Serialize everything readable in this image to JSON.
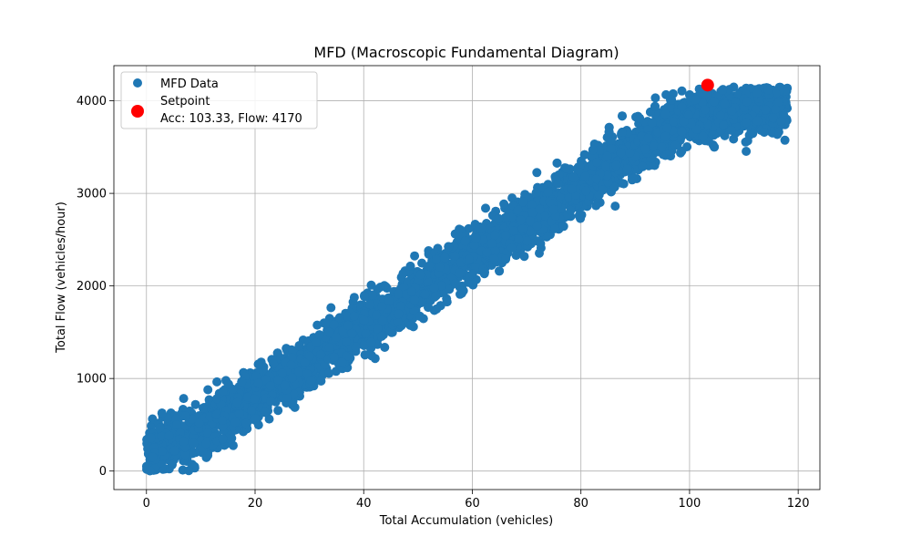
{
  "chart_data": {
    "type": "scatter",
    "title": "MFD (Macroscopic Fundamental Diagram)",
    "xlabel": "Total Accumulation (vehicles)",
    "ylabel": "Total Flow (vehicles/hour)",
    "xlim": [
      -6,
      124
    ],
    "ylim": [
      -200,
      4380
    ],
    "xticks": [
      0,
      20,
      40,
      60,
      80,
      100,
      120
    ],
    "yticks": [
      0,
      1000,
      2000,
      3000,
      4000
    ],
    "grid": true,
    "legend_position": "top-left",
    "series": [
      {
        "name": "MFD Data",
        "color": "#1f77b4",
        "marker": "circle",
        "description_trend": "dense band rising roughly linearly from flow ~0-500 at accumulation 0 to ~3700-4150 at accumulation ~118",
        "band": {
          "x_min": 0,
          "x_max": 118,
          "center": [
            [
              0,
              200
            ],
            [
              10,
              420
            ],
            [
              20,
              800
            ],
            [
              30,
              1180
            ],
            [
              40,
              1560
            ],
            [
              50,
              1950
            ],
            [
              60,
              2350
            ],
            [
              70,
              2720
            ],
            [
              80,
              3080
            ],
            [
              90,
              3480
            ],
            [
              100,
              3820
            ],
            [
              110,
              3900
            ],
            [
              118,
              3930
            ]
          ],
          "half_width": 330,
          "n_points": 4500
        }
      },
      {
        "name": "Setpoint",
        "label_line2": "Acc: 103.33, Flow: 4170",
        "color": "#ff0000",
        "marker": "circle",
        "x": [
          103.33
        ],
        "y": [
          4170
        ]
      }
    ]
  }
}
